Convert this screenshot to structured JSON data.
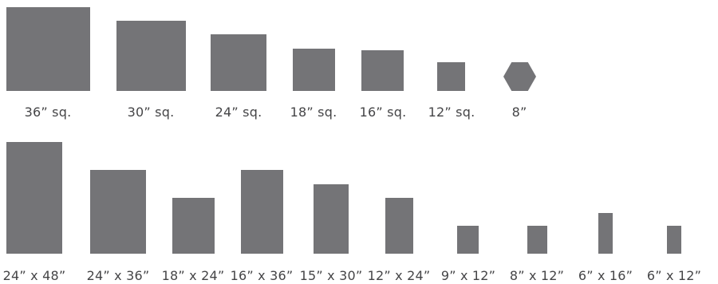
{
  "colors": {
    "tile": "#747477",
    "label": "#454547",
    "background": "#ffffff"
  },
  "rows": [
    {
      "items": [
        {
          "label": "36” sq."
        },
        {
          "label": "30” sq."
        },
        {
          "label": "24” sq."
        },
        {
          "label": "18” sq."
        },
        {
          "label": "16” sq."
        },
        {
          "label": "12” sq."
        },
        {
          "label": "8”",
          "shape": "hexagon"
        }
      ]
    },
    {
      "items": [
        {
          "label": "24” x 48”"
        },
        {
          "label": "24” x 36”"
        },
        {
          "label": "18” x 24”"
        },
        {
          "label": "16” x 36”"
        },
        {
          "label": "15” x 30”"
        },
        {
          "label": "12” x 24”"
        },
        {
          "label": "9” x 12”"
        },
        {
          "label": "8” x 12”"
        },
        {
          "label": "6” x 16”"
        },
        {
          "label": "6” x 12”"
        }
      ]
    }
  ]
}
